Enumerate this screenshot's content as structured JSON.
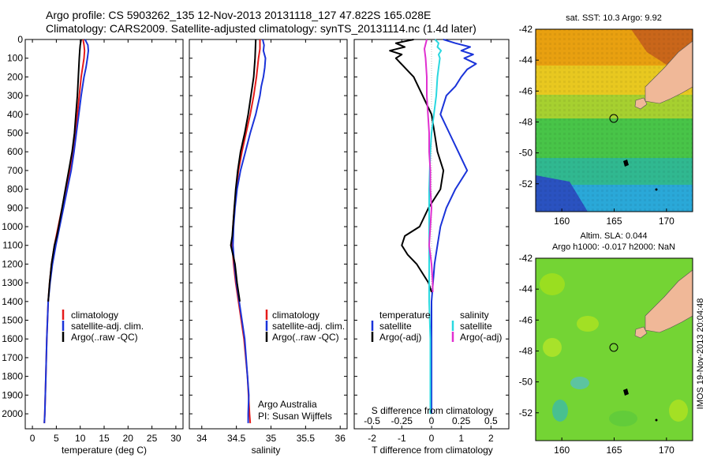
{
  "header": {
    "line1": "Argo profile: CS 5903262_135 12-Nov-2013 20131118_127 47.822S 165.028E",
    "line2": "Climatology: CARS2009. Satellite-adjusted climatology: synTS_20131114.nc (1.4d later)"
  },
  "colors": {
    "climatology": "#e51b1b",
    "satellite": "#1a33d9",
    "argo": "#000000",
    "sal_satellite": "#2ad8e0",
    "sal_argo": "#e030d0",
    "land": "#f0b898",
    "float_marker": "#000000"
  },
  "chart_data": [
    {
      "type": "line",
      "xlabel": "temperature (deg C)",
      "ylabel": "",
      "xlim": [
        -1.5,
        31.5
      ],
      "ylim": [
        2080,
        0
      ],
      "xticks": [
        0,
        5,
        10,
        15,
        20,
        25,
        30
      ],
      "yticks": [
        0,
        100,
        200,
        300,
        400,
        500,
        600,
        700,
        800,
        900,
        1000,
        1100,
        1200,
        1300,
        1400,
        1500,
        1600,
        1700,
        1800,
        1900,
        2000
      ],
      "ytick_labels": [
        "0",
        "100",
        "200",
        "300",
        "400",
        "500",
        "600",
        "700",
        "800",
        "900",
        "1000",
        "1100",
        "1200",
        "1300",
        "1400",
        "1500",
        "1600",
        "1700",
        "1800",
        "1900",
        "2000"
      ],
      "legend": {
        "position": "center",
        "entries": [
          "climatology",
          "satellite-adj. clim.",
          "Argo(..raw -QC)"
        ]
      },
      "series": [
        {
          "name": "climatology",
          "color": "red",
          "depth": [
            0,
            30,
            60,
            100,
            150,
            200,
            300,
            400,
            500,
            600,
            700,
            800,
            900,
            1000,
            1100,
            1200,
            1300,
            1400,
            1600,
            1800,
            2000,
            2050
          ],
          "values": [
            10.6,
            10.8,
            10.9,
            10.8,
            10.5,
            10.2,
            9.8,
            9.4,
            9.0,
            8.5,
            7.8,
            7.0,
            6.2,
            5.4,
            4.6,
            4.0,
            3.6,
            3.3,
            3.0,
            2.8,
            2.6,
            2.5
          ]
        },
        {
          "name": "satellite-adj. clim.",
          "color": "blue",
          "depth": [
            0,
            30,
            60,
            100,
            150,
            200,
            300,
            400,
            500,
            600,
            700,
            800,
            900,
            1000,
            1100,
            1200,
            1300,
            1400,
            1600,
            1800,
            2000,
            2050
          ],
          "values": [
            11.0,
            11.6,
            11.7,
            11.5,
            11.2,
            10.8,
            10.2,
            9.7,
            9.2,
            8.7,
            8.1,
            7.3,
            6.5,
            5.7,
            4.9,
            4.2,
            3.7,
            3.3,
            3.0,
            2.8,
            2.6,
            2.5
          ]
        },
        {
          "name": "Argo(..raw -QC)",
          "color": "black",
          "depth": [
            0,
            30,
            60,
            100,
            150,
            200,
            300,
            400,
            500,
            600,
            700,
            800,
            900,
            1000,
            1050,
            1100,
            1200,
            1300,
            1400
          ],
          "values": [
            10.2,
            10.0,
            9.9,
            9.8,
            9.7,
            9.6,
            9.4,
            9.1,
            8.8,
            8.3,
            7.6,
            6.9,
            6.2,
            5.5,
            5.1,
            4.6,
            4.0,
            3.6,
            3.3
          ]
        }
      ]
    },
    {
      "type": "line",
      "xlabel": "salinity",
      "ylabel": "",
      "xlim": [
        33.82,
        36.1
      ],
      "ylim": [
        2080,
        0
      ],
      "xticks": [
        34,
        34.5,
        35,
        35.5,
        36
      ],
      "xtick_labels": [
        "34",
        "34.5",
        "35",
        "35.5",
        "36"
      ],
      "legend": {
        "position": "center",
        "entries": [
          "climatology",
          "satellite-adj. clim.",
          "Argo(..raw -QC)"
        ]
      },
      "annotations": [
        "Argo Australia",
        "PI: Susan Wijffels"
      ],
      "series": [
        {
          "name": "climatology",
          "color": "red",
          "depth": [
            0,
            50,
            100,
            200,
            300,
            400,
            500,
            600,
            700,
            800,
            900,
            1000,
            1100,
            1200,
            1300,
            1400,
            1500,
            1600,
            1800,
            2000,
            2050
          ],
          "values": [
            34.84,
            34.84,
            34.82,
            34.79,
            34.75,
            34.7,
            34.64,
            34.58,
            34.53,
            34.5,
            34.47,
            34.45,
            34.44,
            34.46,
            34.49,
            34.53,
            34.57,
            34.61,
            34.66,
            34.69,
            34.7
          ]
        },
        {
          "name": "satellite-adj. clim.",
          "color": "blue",
          "depth": [
            0,
            30,
            60,
            100,
            150,
            200,
            250,
            300,
            400,
            500,
            600,
            700,
            800,
            900,
            1000,
            1100,
            1200,
            1300,
            1400,
            1500,
            1600,
            1800,
            1900,
            2000,
            2050
          ],
          "values": [
            34.88,
            34.9,
            34.89,
            34.92,
            34.91,
            34.89,
            34.86,
            34.84,
            34.78,
            34.7,
            34.63,
            34.56,
            34.51,
            34.48,
            34.46,
            34.45,
            34.47,
            34.5,
            34.54,
            34.58,
            34.62,
            34.66,
            34.68,
            34.67,
            34.67
          ]
        },
        {
          "name": "Argo(..raw -QC)",
          "color": "black",
          "depth": [
            0,
            100,
            200,
            300,
            400,
            500,
            600,
            700,
            800,
            900,
            1000,
            1050,
            1100,
            1150,
            1200,
            1300,
            1400
          ],
          "values": [
            34.78,
            34.77,
            34.75,
            34.71,
            34.67,
            34.62,
            34.56,
            34.52,
            34.49,
            34.47,
            34.45,
            34.44,
            34.42,
            34.45,
            34.48,
            34.51,
            34.55
          ]
        }
      ]
    },
    {
      "type": "line",
      "xlabel": "T difference from climatology",
      "xlabel_top": "S difference from climatology",
      "xlim": [
        -2.6,
        2.6
      ],
      "ylim": [
        2080,
        0
      ],
      "xticks": [
        -2,
        -1,
        0,
        1,
        2
      ],
      "xtick_labels": [
        "-2",
        "-1",
        "0",
        "1",
        "2"
      ],
      "top_ticks": [
        -0.5,
        -0.25,
        0,
        0.25,
        0.5
      ],
      "top_tick_labels": [
        "-0.5",
        "-0.25",
        "0",
        "0.25",
        "0.5"
      ],
      "legend_left": {
        "title": "temperature",
        "entries": [
          "satellite",
          "Argo(-adj)"
        ]
      },
      "legend_right": {
        "title": "salinity",
        "entries": [
          "satellite",
          "Argo(-adj)"
        ]
      },
      "series": [
        {
          "name": "satellite",
          "quantity": "temperature",
          "color": "blue",
          "depth": [
            0,
            20,
            40,
            60,
            80,
            100,
            130,
            160,
            200,
            250,
            300,
            400,
            500,
            600,
            700,
            800,
            900,
            1000,
            1100,
            1200,
            1300,
            1400,
            1600,
            1800,
            2000
          ],
          "values": [
            0.4,
            0.8,
            1.3,
            1.0,
            1.4,
            1.1,
            1.5,
            1.2,
            1.0,
            0.8,
            0.5,
            0.3,
            0.6,
            0.9,
            1.2,
            0.8,
            0.5,
            0.3,
            0.2,
            0.1,
            0.05,
            0.0,
            0.0,
            0.0,
            0.0
          ]
        },
        {
          "name": "Argo(-adj)",
          "quantity": "temperature",
          "color": "black",
          "depth": [
            0,
            20,
            40,
            60,
            80,
            100,
            150,
            200,
            300,
            400,
            500,
            600,
            700,
            800,
            900,
            1000,
            1050,
            1100,
            1150,
            1200,
            1300,
            1350
          ],
          "values": [
            -0.6,
            -1.2,
            -0.9,
            -1.4,
            -1.0,
            -1.2,
            -0.9,
            -0.6,
            -0.3,
            0.0,
            0.1,
            0.2,
            0.4,
            0.3,
            -0.1,
            -0.4,
            -0.9,
            -1.0,
            -0.8,
            -0.5,
            -0.1,
            0.0
          ]
        },
        {
          "name": "satellite",
          "quantity": "salinity",
          "color": "cyan",
          "depth": [
            0,
            20,
            40,
            60,
            80,
            100,
            150,
            200,
            300,
            400,
            500,
            600,
            800,
            1000,
            1200,
            1400,
            1600,
            1800,
            2000
          ],
          "values": [
            0.03,
            0.06,
            0.05,
            0.08,
            0.06,
            0.07,
            0.06,
            0.05,
            0.04,
            0.02,
            0.0,
            -0.01,
            -0.02,
            -0.02,
            -0.02,
            -0.02,
            -0.01,
            -0.01,
            -0.01
          ]
        },
        {
          "name": "Argo(-adj)",
          "quantity": "salinity",
          "color": "magenta",
          "depth": [
            0,
            50,
            100,
            200,
            300,
            400,
            500,
            600,
            700,
            800,
            900,
            1000,
            1100,
            1200,
            1300,
            1350
          ],
          "values": [
            -0.04,
            -0.06,
            -0.05,
            -0.04,
            -0.04,
            -0.03,
            -0.02,
            -0.02,
            -0.01,
            -0.01,
            0.0,
            -0.01,
            -0.02,
            0.0,
            0.01,
            0.01
          ]
        }
      ]
    },
    {
      "type": "heatmap",
      "title": "sat. SST: 10.3 Argo: 9.92",
      "xlim": [
        157.5,
        172.5
      ],
      "ylim": [
        -53.8,
        -42
      ],
      "xticks": [
        160,
        165,
        170
      ],
      "xtick_labels": [
        "160",
        "165",
        "170"
      ],
      "yticks": [
        -52,
        -50,
        -48,
        -46,
        -44,
        -42
      ],
      "ytick_labels": [
        "-52",
        "-50",
        "-48",
        "-46",
        "-44",
        "-42"
      ],
      "float_marker": [
        165.028,
        -47.822
      ]
    },
    {
      "type": "heatmap",
      "title": "Altim. SLA: 0.044",
      "subtitle": "Argo h1000: -0.017 h2000: NaN",
      "xlim": [
        157.5,
        172.5
      ],
      "ylim": [
        -53.8,
        -42
      ],
      "xticks": [
        160,
        165,
        170
      ],
      "xtick_labels": [
        "160",
        "165",
        "170"
      ],
      "yticks": [
        -52,
        -50,
        -48,
        -46,
        -44,
        -42
      ],
      "ytick_labels": [
        "-52",
        "-50",
        "-48",
        "-46",
        "-44",
        "-42"
      ],
      "float_marker": [
        165.028,
        -47.822
      ]
    }
  ],
  "side_label": "IMOS 19-Nov-2013 20:04:48"
}
